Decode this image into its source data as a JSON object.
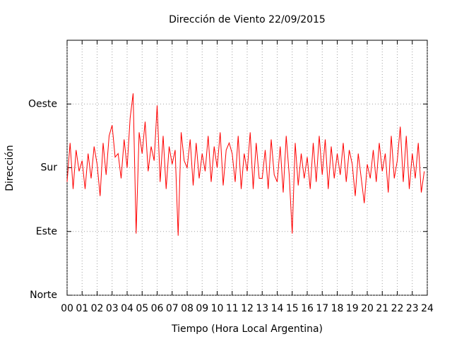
{
  "chart_data": {
    "type": "line",
    "title": "Dirección de Viento 22/09/2015",
    "x_label": "Tiempo (Hora Local Argentina)",
    "y_label": "Dirección",
    "color": "#ff0000",
    "grid": true,
    "xlim": [
      0,
      24
    ],
    "ylim": [
      0,
      360
    ],
    "xticks": [
      {
        "value": 0,
        "label": "00"
      },
      {
        "value": 1,
        "label": "01"
      },
      {
        "value": 2,
        "label": "02"
      },
      {
        "value": 3,
        "label": "03"
      },
      {
        "value": 4,
        "label": "04"
      },
      {
        "value": 5,
        "label": "05"
      },
      {
        "value": 6,
        "label": "06"
      },
      {
        "value": 7,
        "label": "07"
      },
      {
        "value": 8,
        "label": "08"
      },
      {
        "value": 9,
        "label": "09"
      },
      {
        "value": 10,
        "label": "10"
      },
      {
        "value": 11,
        "label": "11"
      },
      {
        "value": 12,
        "label": "12"
      },
      {
        "value": 13,
        "label": "13"
      },
      {
        "value": 14,
        "label": "14"
      },
      {
        "value": 15,
        "label": "15"
      },
      {
        "value": 16,
        "label": "16"
      },
      {
        "value": 17,
        "label": "17"
      },
      {
        "value": 18,
        "label": "18"
      },
      {
        "value": 19,
        "label": "19"
      },
      {
        "value": 20,
        "label": "20"
      },
      {
        "value": 21,
        "label": "21"
      },
      {
        "value": 22,
        "label": "22"
      },
      {
        "value": 23,
        "label": "23"
      },
      {
        "value": 24,
        "label": "24"
      }
    ],
    "yticks": [
      {
        "value": 0,
        "label": "Norte"
      },
      {
        "value": 90,
        "label": "Este"
      },
      {
        "value": 180,
        "label": "Sur"
      },
      {
        "value": 270,
        "label": "Oeste"
      }
    ],
    "x": [
      0,
      0.2,
      0.4,
      0.6,
      0.8,
      1,
      1.2,
      1.4,
      1.6,
      1.8,
      2,
      2.2,
      2.4,
      2.6,
      2.8,
      3,
      3.2,
      3.4,
      3.6,
      3.8,
      4,
      4.2,
      4.4,
      4.6,
      4.8,
      5,
      5.2,
      5.4,
      5.6,
      5.8,
      6,
      6.2,
      6.4,
      6.6,
      6.8,
      7,
      7.2,
      7.4,
      7.6,
      7.8,
      8,
      8.2,
      8.4,
      8.6,
      8.8,
      9,
      9.2,
      9.4,
      9.6,
      9.8,
      10,
      10.2,
      10.4,
      10.6,
      10.8,
      11,
      11.2,
      11.4,
      11.6,
      11.8,
      12,
      12.2,
      12.4,
      12.6,
      12.8,
      13,
      13.2,
      13.4,
      13.6,
      13.8,
      14,
      14.2,
      14.4,
      14.6,
      14.8,
      15,
      15.2,
      15.4,
      15.6,
      15.8,
      16,
      16.2,
      16.4,
      16.6,
      16.8,
      17,
      17.2,
      17.4,
      17.6,
      17.8,
      18,
      18.2,
      18.4,
      18.6,
      18.8,
      19,
      19.2,
      19.4,
      19.6,
      19.8,
      20,
      20.2,
      20.4,
      20.6,
      20.8,
      21,
      21.2,
      21.4,
      21.6,
      21.8,
      22,
      22.2,
      22.4,
      22.6,
      22.8,
      23,
      23.2,
      23.4,
      23.6,
      23.8
    ],
    "values": [
      160,
      215,
      150,
      205,
      175,
      190,
      150,
      200,
      165,
      210,
      185,
      140,
      215,
      170,
      225,
      240,
      195,
      200,
      165,
      220,
      180,
      250,
      285,
      87,
      230,
      200,
      245,
      175,
      210,
      190,
      268,
      160,
      225,
      150,
      210,
      185,
      205,
      84,
      230,
      190,
      180,
      220,
      155,
      215,
      165,
      200,
      175,
      225,
      160,
      210,
      180,
      230,
      155,
      205,
      215,
      200,
      160,
      225,
      150,
      200,
      175,
      230,
      150,
      215,
      165,
      165,
      205,
      150,
      220,
      170,
      160,
      210,
      145,
      225,
      170,
      87,
      215,
      155,
      200,
      165,
      195,
      150,
      215,
      160,
      225,
      170,
      220,
      150,
      210,
      165,
      200,
      170,
      215,
      160,
      205,
      185,
      140,
      200,
      165,
      130,
      185,
      165,
      205,
      160,
      215,
      175,
      200,
      145,
      225,
      165,
      190,
      238,
      160,
      225,
      150,
      200,
      165,
      215,
      145,
      175
    ]
  }
}
